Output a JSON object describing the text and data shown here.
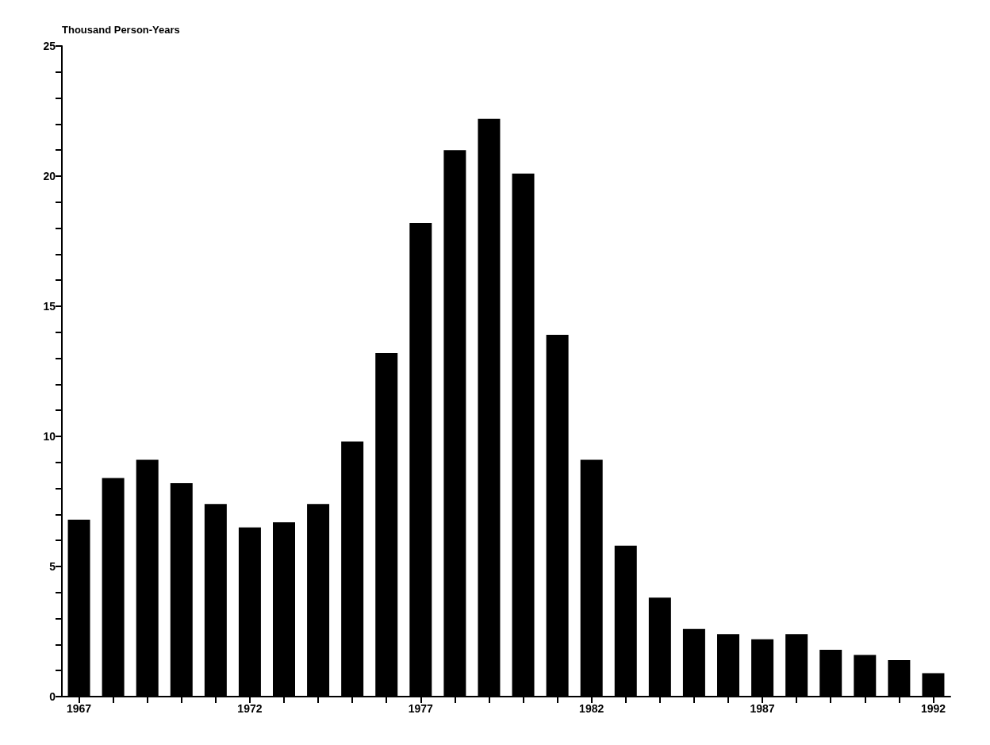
{
  "chart_data": {
    "type": "bar",
    "ylabel": "Thousand Person-Years",
    "categories": [
      "1967",
      null,
      null,
      null,
      null,
      "1972",
      null,
      null,
      null,
      null,
      "1977",
      null,
      null,
      null,
      null,
      "1982",
      null,
      null,
      null,
      null,
      "1987",
      null,
      null,
      null,
      null,
      "1992"
    ],
    "values": [
      6.8,
      8.4,
      9.1,
      8.2,
      7.4,
      6.5,
      6.7,
      7.4,
      9.8,
      13.2,
      18.2,
      21.0,
      22.2,
      20.1,
      13.9,
      9.1,
      5.8,
      3.8,
      2.6,
      2.4,
      2.2,
      2.4,
      1.8,
      1.6,
      1.4,
      0.9
    ],
    "color": "#000000",
    "ylim": [
      0,
      25
    ],
    "yticks": [
      0,
      {
        "value": 1,
        "label": null
      },
      {
        "value": 2,
        "label": null
      },
      {
        "value": 3,
        "label": null
      },
      {
        "value": 4,
        "label": null
      },
      5,
      {
        "value": 6,
        "label": null
      },
      {
        "value": 7,
        "label": null
      },
      {
        "value": 8,
        "label": null
      },
      {
        "value": 9,
        "label": null
      },
      10,
      {
        "value": 11,
        "label": null
      },
      {
        "value": 12,
        "label": null
      },
      {
        "value": 13,
        "label": null
      },
      {
        "value": 14,
        "label": null
      },
      15,
      {
        "value": 16,
        "label": null
      },
      {
        "value": 17,
        "label": null
      },
      {
        "value": 18,
        "label": null
      },
      {
        "value": 19,
        "label": null
      },
      20,
      {
        "value": 21,
        "label": null
      },
      {
        "value": 22,
        "label": null
      },
      {
        "value": 23,
        "label": null
      },
      {
        "value": 24,
        "label": null
      },
      25
    ],
    "grid": false
  }
}
